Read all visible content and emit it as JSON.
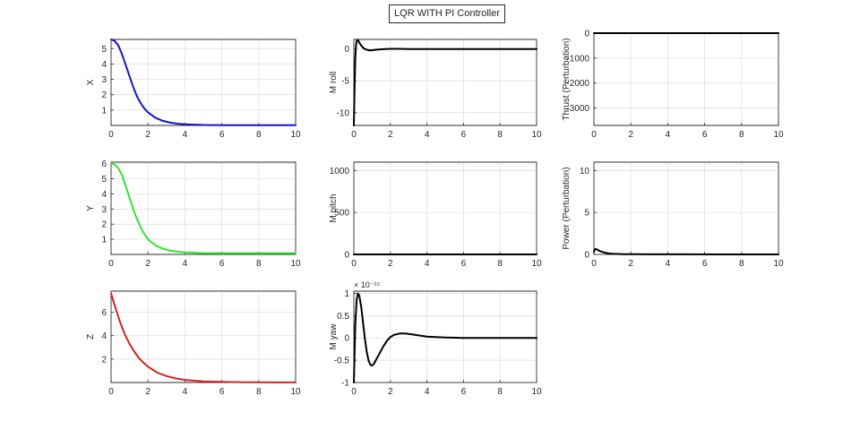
{
  "figure": {
    "title": "LQR WITH PI Controller"
  },
  "chart_data": [
    {
      "id": "x",
      "type": "line",
      "ylabel": "X",
      "xlim": [
        0,
        10
      ],
      "ylim": [
        0,
        5.6
      ],
      "xticks": [
        0,
        2,
        4,
        6,
        8,
        10
      ],
      "yticks": [
        1,
        2,
        3,
        4,
        5
      ],
      "grid": true,
      "series": [
        {
          "color": "#1414c8",
          "x": [
            0,
            0.2,
            0.4,
            0.6,
            0.8,
            1.0,
            1.2,
            1.4,
            1.6,
            1.8,
            2.0,
            2.4,
            2.8,
            3.2,
            3.6,
            4.0,
            5.0,
            6.0,
            7.0,
            8.0,
            9.0,
            10.0
          ],
          "y": [
            5.6,
            5.5,
            5.2,
            4.6,
            3.9,
            3.2,
            2.5,
            1.9,
            1.45,
            1.1,
            0.85,
            0.5,
            0.3,
            0.18,
            0.11,
            0.07,
            0.03,
            0.02,
            0.01,
            0.01,
            0.01,
            0.01
          ]
        }
      ]
    },
    {
      "id": "mroll",
      "type": "line",
      "ylabel": "M roll",
      "xlim": [
        0,
        10
      ],
      "ylim": [
        -12,
        1.5
      ],
      "xticks": [
        0,
        2,
        4,
        6,
        8,
        10
      ],
      "yticks": [
        -10,
        -5,
        0
      ],
      "grid": true,
      "series": [
        {
          "color": "#000000",
          "x": [
            0,
            0.04,
            0.08,
            0.12,
            0.16,
            0.2,
            0.25,
            0.3,
            0.4,
            0.5,
            0.6,
            0.8,
            1.0,
            1.2,
            1.5,
            2.0,
            2.5,
            3.0,
            4.0,
            6.0,
            8.0,
            10.0
          ],
          "y": [
            -12,
            -6,
            -1.5,
            0.6,
            1.3,
            1.45,
            1.3,
            1.0,
            0.55,
            0.2,
            0.0,
            -0.2,
            -0.2,
            -0.12,
            -0.04,
            0.02,
            0.03,
            0.0,
            0.0,
            0.0,
            0.0,
            0.0
          ]
        }
      ]
    },
    {
      "id": "thrust",
      "type": "line",
      "ylabel": "Thrust (Perturbation)",
      "xlim": [
        0,
        10
      ],
      "ylim": [
        -3700,
        0
      ],
      "xticks": [
        0,
        2,
        4,
        6,
        8,
        10
      ],
      "yticks": [
        -3000,
        -2000,
        -1000,
        0
      ],
      "grid": true,
      "series": [
        {
          "color": "#000000",
          "x": [
            0,
            10
          ],
          "y": [
            0,
            0
          ]
        }
      ]
    },
    {
      "id": "y",
      "type": "line",
      "ylabel": "Y",
      "xlim": [
        0,
        10
      ],
      "ylim": [
        0,
        6.1
      ],
      "xticks": [
        0,
        2,
        4,
        6,
        8,
        10
      ],
      "yticks": [
        1,
        2,
        3,
        4,
        5,
        6
      ],
      "grid": true,
      "series": [
        {
          "color": "#2ee62e",
          "x": [
            0,
            0.2,
            0.4,
            0.6,
            0.8,
            1.0,
            1.2,
            1.4,
            1.6,
            1.8,
            2.0,
            2.4,
            2.8,
            3.2,
            3.6,
            4.0,
            5.0,
            6.0,
            7.0,
            8.0,
            9.0,
            10.0
          ],
          "y": [
            6.0,
            5.95,
            5.7,
            5.2,
            4.5,
            3.75,
            3.0,
            2.35,
            1.8,
            1.35,
            1.0,
            0.6,
            0.38,
            0.25,
            0.18,
            0.13,
            0.09,
            0.08,
            0.08,
            0.08,
            0.08,
            0.08
          ]
        }
      ]
    },
    {
      "id": "mpitch",
      "type": "line",
      "ylabel": "M pitch",
      "xlim": [
        0,
        10
      ],
      "ylim": [
        0,
        1100
      ],
      "xticks": [
        0,
        2,
        4,
        6,
        8,
        10
      ],
      "yticks": [
        0,
        500,
        1000
      ],
      "grid": true,
      "series": [
        {
          "color": "#000000",
          "x": [
            0,
            10
          ],
          "y": [
            0,
            0
          ]
        }
      ]
    },
    {
      "id": "power",
      "type": "line",
      "ylabel": "Power (Perturbation)",
      "xlim": [
        0,
        10
      ],
      "ylim": [
        0,
        11
      ],
      "xticks": [
        0,
        2,
        4,
        6,
        8,
        10
      ],
      "yticks": [
        0,
        5,
        10
      ],
      "grid": true,
      "series": [
        {
          "color": "#000000",
          "x": [
            0,
            0.05,
            0.1,
            0.2,
            0.3,
            0.45,
            0.6,
            0.8,
            1.0,
            1.3,
            1.6,
            2.0,
            3.0,
            5.0,
            7.0,
            10.0
          ],
          "y": [
            0.3,
            0.6,
            0.65,
            0.55,
            0.42,
            0.3,
            0.2,
            0.12,
            0.08,
            0.05,
            0.03,
            0.02,
            0.01,
            0.01,
            0.0,
            0.0
          ]
        }
      ]
    },
    {
      "id": "z",
      "type": "line",
      "ylabel": "Z",
      "xlim": [
        0,
        10
      ],
      "ylim": [
        0,
        7.8
      ],
      "xticks": [
        0,
        2,
        4,
        6,
        8,
        10
      ],
      "yticks": [
        2,
        4,
        6
      ],
      "grid": true,
      "series": [
        {
          "color": "#d42424",
          "x": [
            0,
            0.25,
            0.5,
            0.75,
            1.0,
            1.25,
            1.5,
            1.75,
            2.0,
            2.5,
            3.0,
            3.5,
            4.0,
            5.0,
            6.0,
            7.0,
            8.0,
            9.0,
            10.0
          ],
          "y": [
            7.6,
            6.3,
            5.1,
            4.1,
            3.3,
            2.65,
            2.1,
            1.7,
            1.35,
            0.85,
            0.55,
            0.35,
            0.22,
            0.1,
            0.05,
            0.03,
            0.02,
            0.01,
            0.01
          ]
        }
      ]
    },
    {
      "id": "myaw",
      "type": "line",
      "ylabel": "M yaw",
      "exponent": "× 10⁻¹⁵",
      "xlim": [
        0,
        10
      ],
      "ylim": [
        -1,
        1.05
      ],
      "xticks": [
        0,
        2,
        4,
        6,
        8,
        10
      ],
      "yticks": [
        -1,
        -0.5,
        0,
        0.5,
        1
      ],
      "ytick_labels": [
        "-1",
        "-0.5",
        "0",
        "0.5",
        "1"
      ],
      "grid": true,
      "series": [
        {
          "color": "#000000",
          "x": [
            0,
            0.08,
            0.15,
            0.22,
            0.3,
            0.4,
            0.5,
            0.6,
            0.7,
            0.8,
            0.9,
            1.0,
            1.1,
            1.2,
            1.4,
            1.6,
            1.8,
            2.0,
            2.2,
            2.5,
            2.8,
            3.0,
            3.5,
            4.0,
            5.0,
            6.0,
            8.0,
            10.0
          ],
          "y": [
            -1.0,
            0.3,
            0.85,
            1.0,
            0.95,
            0.7,
            0.35,
            0.0,
            -0.3,
            -0.5,
            -0.6,
            -0.62,
            -0.58,
            -0.5,
            -0.35,
            -0.2,
            -0.07,
            0.02,
            0.07,
            0.1,
            0.1,
            0.09,
            0.06,
            0.03,
            0.01,
            0.0,
            0.0,
            0.0
          ]
        }
      ]
    }
  ]
}
